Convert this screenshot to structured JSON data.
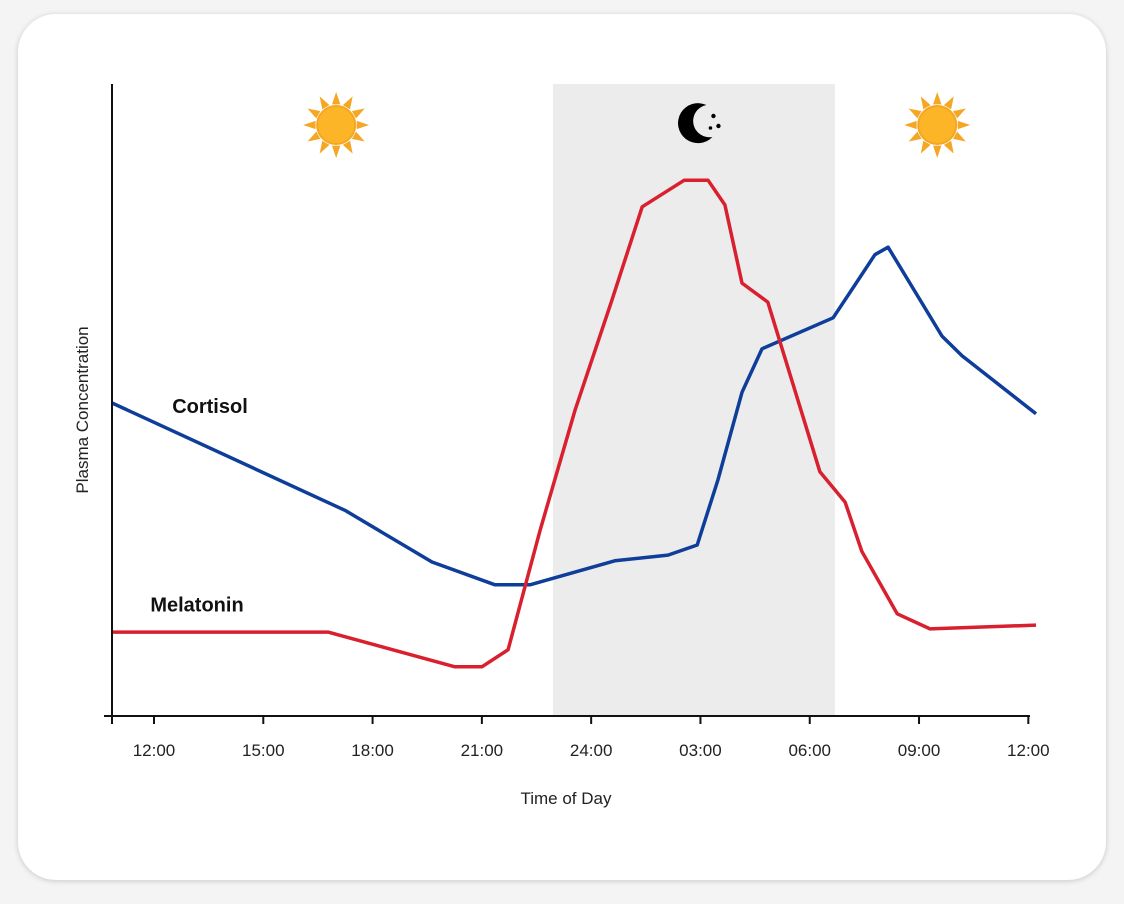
{
  "chart_data": {
    "type": "line",
    "title": "",
    "xlabel": "Time of Day",
    "ylabel": "Plasma Concentration",
    "x_unit": "hours (12 = noon day 1, 24 = midnight, 36 = noon day 2)",
    "xlim": [
      10.85,
      36.3
    ],
    "ylim": [
      0,
      100
    ],
    "x_ticks": [
      12,
      15,
      18,
      21,
      24,
      27,
      30,
      33,
      36
    ],
    "x_tick_labels": [
      "12:00",
      "15:00",
      "18:00",
      "21:00",
      "24:00",
      "03:00",
      "06:00",
      "09:00",
      "12:00"
    ],
    "y_ticks": [],
    "grid": false,
    "night_band": {
      "start": 22.95,
      "end": 30.69,
      "color": "#ececed"
    },
    "icons": [
      {
        "name": "sun-icon",
        "x": 17.0
      },
      {
        "name": "moon-stars-icon",
        "x": 27.0
      },
      {
        "name": "sun-icon",
        "x": 33.5
      }
    ],
    "series": [
      {
        "name": "Cortisol",
        "color": "#0e3d9a",
        "label_pos": {
          "x": 12.5,
          "y": 48
        },
        "x": [
          10.85,
          17.24,
          19.63,
          21.36,
          22.32,
          24.65,
          26.11,
          26.91,
          27.48,
          28.14,
          28.69,
          30.64,
          31.24,
          31.79,
          32.15,
          33.63,
          34.18,
          36.21
        ],
        "y": [
          49.6,
          32.6,
          24.4,
          20.8,
          20.8,
          24.6,
          25.5,
          27.1,
          37.4,
          51.3,
          58.2,
          63.1,
          68.3,
          73.1,
          74.3,
          60.2,
          57.1,
          47.9
        ]
      },
      {
        "name": "Melatonin",
        "color": "#d8202f",
        "label_pos": {
          "x": 11.9,
          "y": 16.6
        },
        "x": [
          10.85,
          16.78,
          20.26,
          21.0,
          21.72,
          22.6,
          23.56,
          24.57,
          25.4,
          26.55,
          27.21,
          27.67,
          28.14,
          28.85,
          30.28,
          30.97,
          31.43,
          32.4,
          33.3,
          36.21
        ],
        "y": [
          13.3,
          13.3,
          7.8,
          7.8,
          10.5,
          29.5,
          48.5,
          65.9,
          80.7,
          84.9,
          84.9,
          81.0,
          68.6,
          65.6,
          38.7,
          33.9,
          26.1,
          16.2,
          13.8,
          14.4
        ]
      }
    ]
  }
}
